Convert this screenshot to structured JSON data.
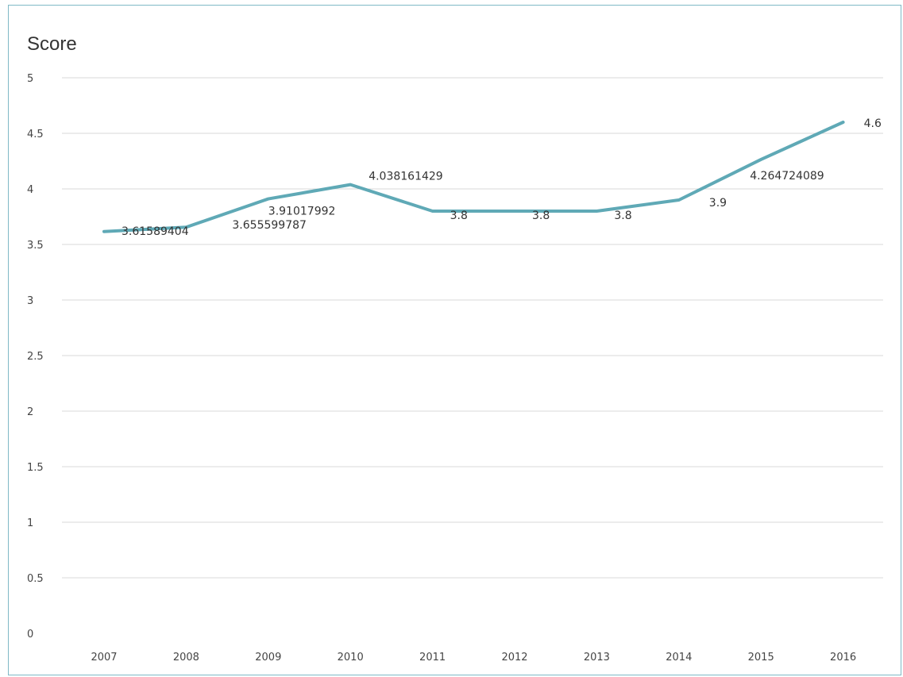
{
  "chart_data": {
    "type": "line",
    "title": "",
    "xlabel": "",
    "ylabel": "Score",
    "ylim": [
      0,
      5
    ],
    "y_ticks": [
      "0",
      "0.5",
      "1",
      "1.5",
      "2",
      "2.5",
      "3",
      "3.5",
      "4",
      "4.5",
      "5"
    ],
    "grid": true,
    "legend": "none",
    "categories": [
      "2007",
      "2008",
      "2009",
      "2010",
      "2011",
      "2012",
      "2013",
      "2014",
      "2015",
      "2016"
    ],
    "series": [
      {
        "color": "#5fa9b6",
        "values": [
          3.61589404,
          3.655599787,
          3.91017992,
          4.038161429,
          3.8,
          3.8,
          3.8,
          3.9,
          4.264724089,
          4.6
        ],
        "labels": [
          "3.61589404",
          "3.655599787",
          "3.91017992",
          "4.038161429",
          "3.8",
          "3.8",
          "3.8",
          "3.9",
          "4.264724089",
          "4.6"
        ]
      }
    ]
  }
}
